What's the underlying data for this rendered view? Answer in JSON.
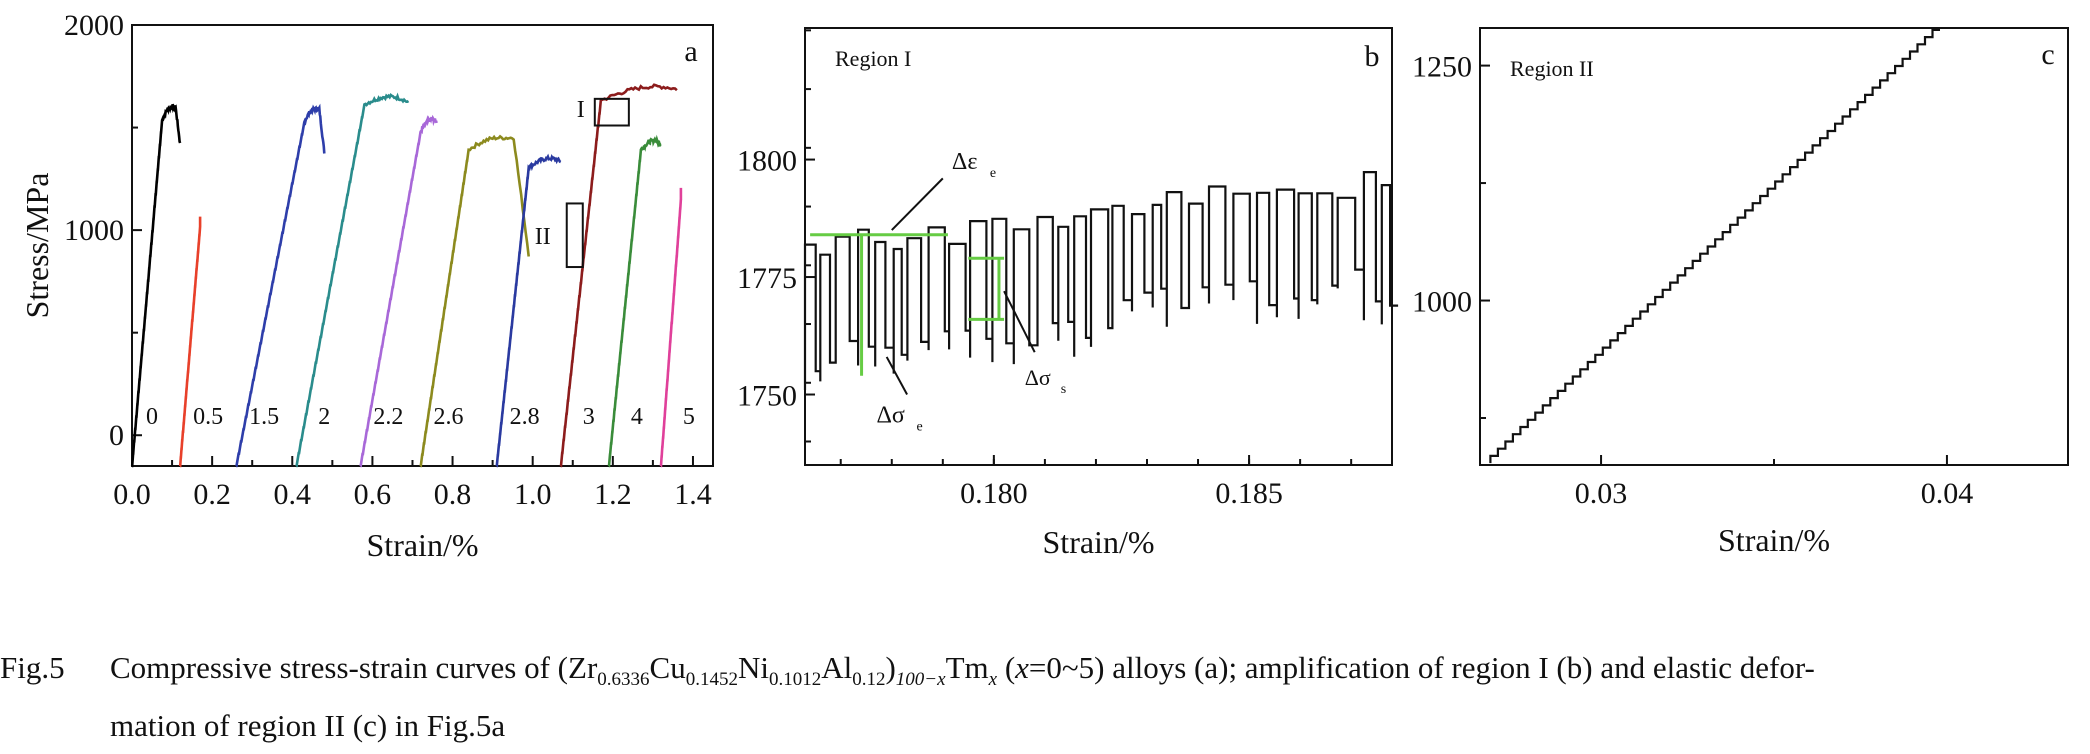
{
  "figure": {
    "caption_label": "Fig.5",
    "caption_line1_prefix": "Compressive stress-strain curves of (Zr",
    "sub1": "0.6336",
    "el2": "Cu",
    "sub2": "0.1452",
    "el3": "Ni",
    "sub3": "0.1012",
    "el4": "Al",
    "sub4": "0.12",
    "close": ")",
    "sub5": "100−x",
    "el5": "Tm",
    "sub6": "x",
    "paren_x": "x",
    "range": "=0~5) alloys (a); amplification of region I (b) and elastic defor-",
    "caption_line2": "mation of region II (c) in Fig.5a"
  },
  "chart_data": [
    {
      "panel": "a",
      "type": "line",
      "xlabel": "Strain/%",
      "ylabel": "Stress/MPa",
      "xlim": [
        0.0,
        1.45
      ],
      "ylim": [
        -150,
        2000
      ],
      "xticks": [
        "0.0",
        "0.2",
        "0.4",
        "0.6",
        "0.8",
        "1.0",
        "1.2",
        "1.4"
      ],
      "yticks": [
        "0",
        "1000",
        "2000"
      ],
      "box_labels": [
        "I",
        "II"
      ],
      "series": [
        {
          "name": "0",
          "color": "#000000",
          "x0": 0.0,
          "peak": 1600,
          "strain_to_peak": 0.075,
          "end_x": 0.12,
          "end_y": 1420
        },
        {
          "name": "0.5",
          "color": "#e8402a",
          "x0": 0.12,
          "peak": 1060,
          "strain_to_peak": 0.05,
          "end_x": 0.17,
          "end_y": 1060
        },
        {
          "name": "1.5",
          "color": "#2e3eaa",
          "x0": 0.26,
          "peak": 1590,
          "strain_to_peak": 0.17,
          "end_x": 0.48,
          "end_y": 1380
        },
        {
          "name": "2",
          "color": "#2a8c8c",
          "x0": 0.41,
          "peak": 1680,
          "strain_to_peak": 0.17,
          "end_x": 0.69,
          "end_y": 1590
        },
        {
          "name": "2.2",
          "color": "#a868d8",
          "x0": 0.57,
          "peak": 1540,
          "strain_to_peak": 0.15,
          "end_x": 0.76,
          "end_y": 1540
        },
        {
          "name": "2.6",
          "color": "#8c8a1e",
          "x0": 0.72,
          "peak": 1450,
          "strain_to_peak": 0.12,
          "end_x": 0.99,
          "end_y": 880
        },
        {
          "name": "2.8",
          "color": "#2a3aa0",
          "x0": 0.91,
          "peak": 1360,
          "strain_to_peak": 0.08,
          "end_x": 1.07,
          "end_y": 1330
        },
        {
          "name": "3",
          "color": "#8c1c1c",
          "x0": 1.07,
          "peak": 1700,
          "strain_to_peak": 0.1,
          "end_x": 1.36,
          "end_y": 1700
        },
        {
          "name": "4",
          "color": "#3a8c3a",
          "x0": 1.19,
          "peak": 1450,
          "strain_to_peak": 0.08,
          "end_x": 1.32,
          "end_y": 1410
        },
        {
          "name": "5",
          "color": "#e0409a",
          "x0": 1.32,
          "peak": 1200,
          "strain_to_peak": 0.05,
          "end_x": 1.37,
          "end_y": 1200
        }
      ]
    },
    {
      "panel": "b",
      "type": "line",
      "title": "Region I",
      "xlabel": "Strain/%",
      "xlim": [
        0.1763,
        0.1878
      ],
      "ylim": [
        1735,
        1828
      ],
      "xticks": [
        "0.180",
        "0.185"
      ],
      "yticks": [
        "1750",
        "1775",
        "1800"
      ],
      "annotations": [
        "Δε",
        "Δσ",
        "Δσ"
      ],
      "annotation_subs": [
        "e",
        "e",
        "s"
      ],
      "serration_base_start": 1770,
      "serration_base_end": 1785,
      "highlight_color": "#66cc44"
    },
    {
      "panel": "c",
      "type": "line",
      "title": "Region II",
      "xlabel": "Strain/%",
      "xlim": [
        0.0265,
        0.0435
      ],
      "ylim": [
        825,
        1290
      ],
      "xticks": [
        "0.03",
        "0.04"
      ],
      "yticks": [
        "1000",
        "1250"
      ],
      "start": [
        0.0268,
        827
      ],
      "end": [
        0.0398,
        1288
      ],
      "steps": 60
    }
  ]
}
